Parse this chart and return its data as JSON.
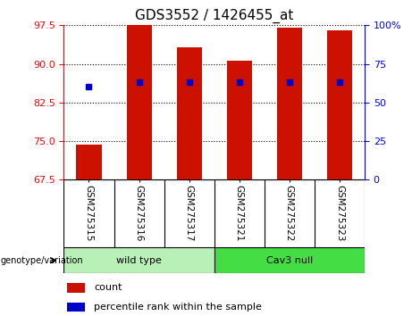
{
  "title": "GDS3552 / 1426455_at",
  "samples": [
    "GSM275315",
    "GSM275316",
    "GSM275317",
    "GSM275321",
    "GSM275322",
    "GSM275323"
  ],
  "bar_values": [
    74.3,
    97.5,
    93.2,
    90.6,
    97.0,
    96.5
  ],
  "bar_bottom": 67.5,
  "percentile_values": [
    85.5,
    86.5,
    86.5,
    86.5,
    86.5,
    86.5
  ],
  "bar_color": "#cc1100",
  "percentile_color": "#0000cc",
  "ylim_left": [
    67.5,
    97.5
  ],
  "ylim_right": [
    0,
    100
  ],
  "yticks_left": [
    67.5,
    75.0,
    82.5,
    90.0,
    97.5
  ],
  "yticks_right": [
    0,
    25,
    50,
    75,
    100
  ],
  "ytick_labels_right": [
    "0",
    "25",
    "50",
    "75",
    "100%"
  ],
  "groups": [
    {
      "label": "wild type",
      "indices": [
        0,
        1,
        2
      ],
      "color": "#b8f0b8"
    },
    {
      "label": "Cav3 null",
      "indices": [
        3,
        4,
        5
      ],
      "color": "#44dd44"
    }
  ],
  "group_label": "genotype/variation",
  "legend_count_label": "count",
  "legend_percentile_label": "percentile rank within the sample",
  "bar_width": 0.5,
  "plot_bg_color": "#ffffff",
  "label_area_color": "#d0d0d0",
  "title_fontsize": 11
}
